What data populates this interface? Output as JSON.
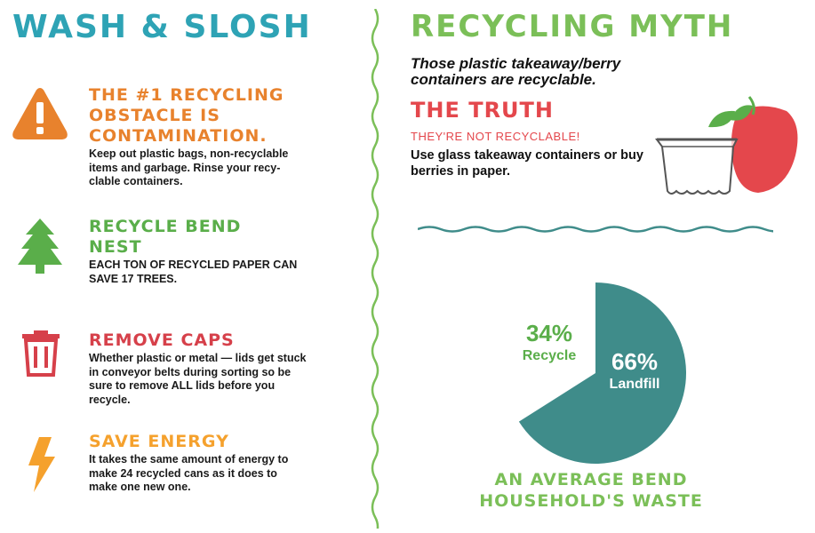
{
  "left": {
    "heading": "WASH & SLOSH",
    "tips": [
      {
        "icon": "warning-icon",
        "title": "THE #1 RECYCLING OBSTACLE IS CONTAMINATION.",
        "body": "Keep out plastic bags, non-recyclable items and garbage. Rinse your recy-clable containers."
      },
      {
        "icon": "tree-icon",
        "title": "RECYCLE BEND NEST",
        "body": "EACH TON OF RECYCLED PAPER CAN SAVE 17 TREES."
      },
      {
        "icon": "trash-can-icon",
        "title": "REMOVE CAPS",
        "body": "Whether plastic or metal — lids get stuck in conveyor belts during sorting so be sure to remove ALL lids before you recycle."
      },
      {
        "icon": "lightning-bolt-icon",
        "title": "SAVE ENERGY",
        "body": "It takes the same amount of energy to make 24 recycled cans as it does to make one new one."
      }
    ]
  },
  "right": {
    "heading": "RECYCLING MYTH",
    "myth": "Those plastic takeaway/berry containers are recyclable.",
    "truth_heading": "THE TRUTH",
    "truth_sub": "THEY'RE NOT RECYCLABLE!",
    "truth_body": "Use glass takeaway containers or buy berries in paper.",
    "illustration": "berry-container-icon"
  },
  "chart_data": {
    "type": "pie",
    "title": "",
    "caption": "AN AVERAGE BEND HOUSEHOLD'S WASTE",
    "slices": [
      {
        "label": "Recycle",
        "value": 34,
        "display": "34%"
      },
      {
        "label": "Landfill",
        "value": 66,
        "display": "66%"
      }
    ]
  },
  "colors": {
    "teal": "#2ea3b5",
    "green": "#7bbf58",
    "orange": "#e8822d",
    "red": "#d6404a",
    "yellow": "#f5a12d",
    "pie_landfill": "#3f8c8a"
  }
}
